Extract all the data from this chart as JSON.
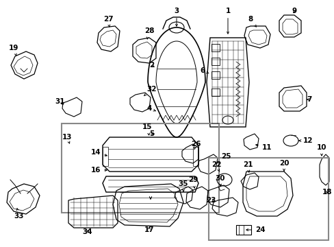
{
  "background_color": "#ffffff",
  "fig_width": 4.89,
  "fig_height": 3.6,
  "dpi": 100,
  "label_fontsize": 7.5,
  "label_fontweight": "bold",
  "label_color": "#000000",
  "line_color": "#000000",
  "box_color": "#888888",
  "lc": "#000000"
}
